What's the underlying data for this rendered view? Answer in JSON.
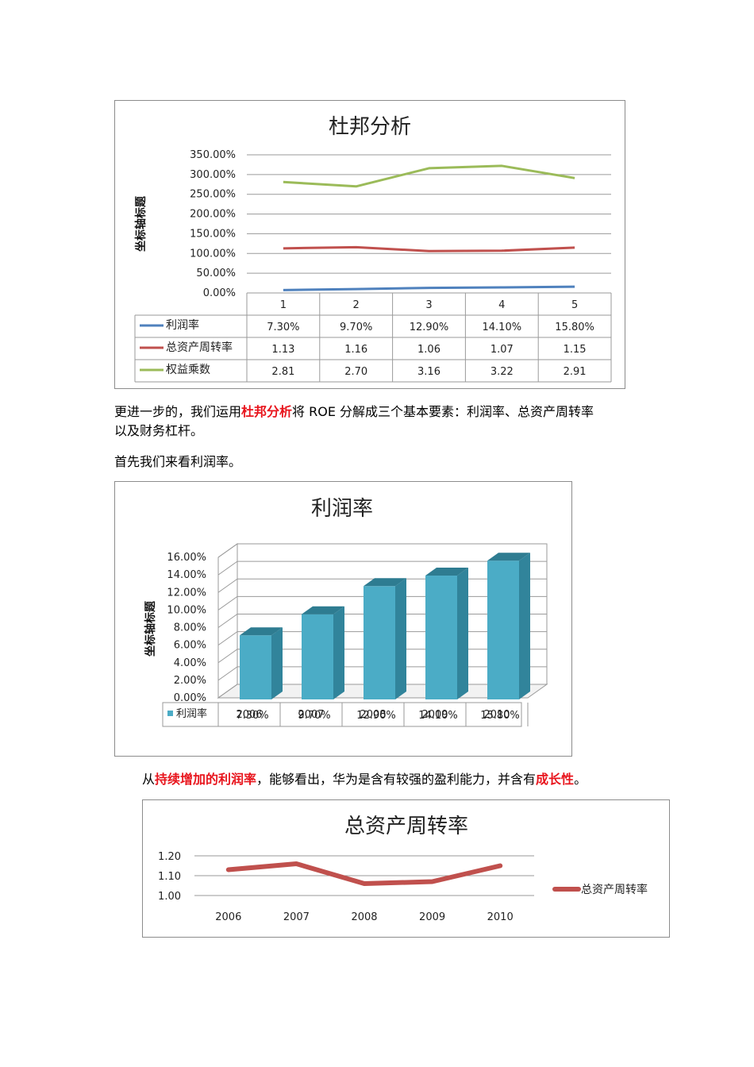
{
  "chart_data": [
    {
      "type": "line",
      "title": "杜邦分析",
      "ylabel": "坐标轴标题",
      "categories": [
        "1",
        "2",
        "3",
        "4",
        "5"
      ],
      "yticks": [
        "0.00%",
        "50.00%",
        "100.00%",
        "150.00%",
        "200.00%",
        "250.00%",
        "300.00%",
        "350.00%"
      ],
      "ylim": [
        0,
        350
      ],
      "series": [
        {
          "name": "利润率",
          "values": [
            7.3,
            9.7,
            12.9,
            14.1,
            15.8
          ],
          "labels": [
            "7.30%",
            "9.70%",
            "12.90%",
            "14.10%",
            "15.80%"
          ],
          "color": "#4f81bd"
        },
        {
          "name": "总资产周转率",
          "values": [
            113,
            116,
            106,
            107,
            115
          ],
          "labels": [
            "1.13",
            "1.16",
            "1.06",
            "1.07",
            "1.15"
          ],
          "color": "#c0504d"
        },
        {
          "name": "权益乘数",
          "values": [
            281,
            270,
            316,
            322,
            291
          ],
          "labels": [
            "2.81",
            "2.70",
            "3.16",
            "3.22",
            "2.91"
          ],
          "color": "#9bbb59"
        }
      ],
      "data_table": true,
      "grid": true
    },
    {
      "type": "bar",
      "title": "利润率",
      "ylabel": "坐标轴标题",
      "categories": [
        "2006",
        "2007",
        "2008",
        "2009",
        "2010"
      ],
      "yticks": [
        "0.00%",
        "2.00%",
        "4.00%",
        "6.00%",
        "8.00%",
        "10.00%",
        "12.00%",
        "14.00%",
        "16.00%"
      ],
      "ylim": [
        0,
        16
      ],
      "series": [
        {
          "name": "利润率",
          "values": [
            7.3,
            9.7,
            12.9,
            14.1,
            15.8
          ],
          "labels": [
            "7.30%",
            "9.70%",
            "12.90%",
            "14.10%",
            "15.80%"
          ],
          "color": "#4bacc6"
        }
      ],
      "data_table": true,
      "grid": true
    },
    {
      "type": "line",
      "title": "总资产周转率",
      "categories": [
        "2006",
        "2007",
        "2008",
        "2009",
        "2010"
      ],
      "yticks": [
        "1.00",
        "1.10",
        "1.20"
      ],
      "ylim": [
        1.0,
        1.2
      ],
      "series": [
        {
          "name": "总资产周转率",
          "values": [
            1.13,
            1.16,
            1.06,
            1.07,
            1.15
          ],
          "color": "#c0504d"
        }
      ],
      "legend": "right",
      "grid": true
    }
  ],
  "text": {
    "p1_a": "更进一步的，我们运用",
    "p1_hl": "杜邦分析",
    "p1_b": "将 ROE 分解成三个基本要素：利润率、总资产周转率",
    "p1_line2": "以及财务杠杆。",
    "p2": "首先我们来看利润率。",
    "p3_a": "从",
    "p3_hl1": "持续增加的利润率",
    "p3_b": "，能够看出，华为是含有较强的盈利能力，并含有",
    "p3_hl2": "成长性",
    "p3_c": "。"
  }
}
